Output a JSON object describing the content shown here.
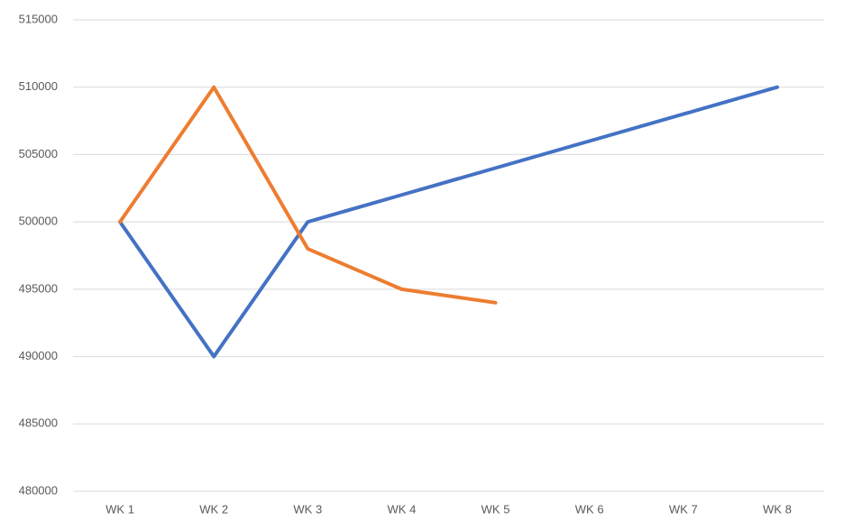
{
  "chart_data": {
    "type": "line",
    "categories": [
      "WK 1",
      "WK 2",
      "WK 3",
      "WK 4",
      "WK 5",
      "WK 6",
      "WK 7",
      "WK 8"
    ],
    "series": [
      {
        "color": "#4472c4",
        "values": [
          500000,
          490000,
          500000,
          502000,
          504000,
          506000,
          508000,
          510000
        ]
      },
      {
        "color": "#ed7d31",
        "values": [
          500000,
          510000,
          498000,
          495000,
          494000,
          null,
          null,
          null
        ]
      }
    ],
    "ylim": [
      480000,
      515000
    ],
    "yticks": [
      480000,
      485000,
      490000,
      495000,
      500000,
      505000,
      510000,
      515000
    ],
    "grid": true
  }
}
